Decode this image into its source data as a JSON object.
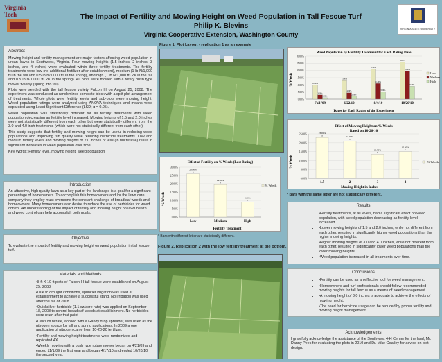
{
  "header": {
    "title": "The Impact of Fertility and Mowing Height on Weed Population in Tall Fescue Turf",
    "author": "Philip K. Blevins",
    "affiliation": "Virginia Cooperative Extension, Washington County",
    "logo_left_text": "Virginia Tech",
    "logo_right_text": "VIRGINIA STATE UNIVERSITY"
  },
  "abstract": {
    "heading": "Abstract",
    "p1": "Mowing height and fertility management are major factors affecting weed population in urban lawns in Southwest, Virginia. Four mowing heights (1.5 inches, 2 inches, 3 inches, and 4 inches) were evaluated within three fertility treatments. The fertility treatments were low (no additional fertilizer after establishment), medium (1 lb N/1,000 ft² in the fall and 0.5 lb N/1,000 ft² in the spring), and high (1 lb N/1,000 ft² 2X in the fall and 0.5 lb N/1,000 ft² 2X in the spring). All plots were mowed with a rotary push type mower weekly (spring into fall).",
    "p2": "Plots were seeded with the tall fescue variety Falcon III on August 25, 2008. The experiment was conducted as randomized complete block with a split plot arrangement of treatments. Whole plots were fertility levels and sub-plots were mowing height. Weed population ratings were analyzed using ANOVA techniques and means were separated using Least Significant Difference (LSD; α = 0.05).",
    "p3": "Weed population was statistically different for all fertility treatments with weed population decreasing as fertility level increased. Mowing heights of 1.5 and 2.0 inches were not statistically different from each other but were statistically different from the 3.0 and 4.0 inch treatments (which were not statistically different from each other).",
    "p4": "This study suggests that fertility and mowing height can be useful in reducing weed populations and improving turf quality while reducing herbicide treatments. Low and medium fertility levels and mowing heights of 2.0 inches or less (in tall fescue) result in significant increases in weed population over time.",
    "keywords": "Key Words: Fertility level, mowing height, weed population"
  },
  "introduction": {
    "heading": "Introduction",
    "text": "An attractive, high quality lawn as a key part of the landscape is a goal for a significant percentage of homeowners. To accomplish this homeowners and /or the lawn care company they employ must overcome the constant challenge of broadleaf weeds and homeowners. Many homeowners also desire to reduce the use of herbicides for weed control. An understanding of the impact of fertility and mowing height on lawn health and weed control can help accomplish both goals."
  },
  "objective": {
    "heading": "Objective",
    "text": "To evaluate the impact of fertility and mowing height on weed population in tall fescue turf."
  },
  "materials": {
    "heading": "Materials and Methods",
    "items": [
      "8 ft X 10 ft plots of Falcon III tall fescue were established on August 25, 2008",
      "Due to drought conditions, sprinkler irrigation was used at establishment to achieve a successful stand. No irrigation was used after the fall of 2008.",
      "Quicksilver herbicide (1.1 oz/acre rate) was applied on September 18, 2008 to control broadleaf weeds at establishment. No herbicides were used after that point.",
      "Calcium nitrate, applied with a Gandy drop spreader, was used as the nitrogen source for fall and spring applications. In 2009 a one application of nitrogen came from 10-20-20 fertilizer.",
      "Fertility and mowing height treatments were randomized and replicated 4X.",
      "Weekly mowing with a push type rotary mower began on 4/21/09 and ended 11/1/09 the first year and began 4/17/10 and ended 10/20/10 the second year."
    ]
  },
  "figures": {
    "fig1_caption": "Figure 1. Plot Layout - replication 1 as an example",
    "fig2_caption": "Figure 2. Replication 2 with the low fertility treatment at the bottom.",
    "bar_note": "* Bars with different letter are statistically different.",
    "bar_note2": "* Bars with the same letter are not statistically different."
  },
  "results": {
    "heading": "Results",
    "items": [
      "Fertility treatments, at all levels, had a significant effect on weed population, with weed population decreasing as fertility level increased.",
      "Lower mowing heights of 1.5 and 2.0 inches, while not different from each other, resulted in significantly higher weed populations than the higher mowing heights.",
      "Higher mowing heights of 3.0 and 4.0 inches, while not different from each other, resulted in significantly lower weed populations than the lower mowing heights.",
      "Weed population increased in all treatments over time."
    ]
  },
  "conclusions": {
    "heading": "Conclusions",
    "items": [
      "Fertility can be used as an effective tool for weed management.",
      "Homeowners and turf professionals should follow recommended mowing heights for tall fescue as a means of weed management.",
      "A mowing height of 3.0 inches is adequate to achieve the effects of mowing height.",
      "The need for herbicide usage can be reduced by proper fertility and mowing height management."
    ]
  },
  "acknowledgements": {
    "heading": "Acknowledgements",
    "text": "I gratefully acknowledge the assistance of the Southwest 4-H Center for the land, Mr. Danny Peek for evaluating the plots in 2010 and Dr. Mike Goatley for advice on plot design."
  },
  "chart_data": [
    {
      "type": "bar",
      "title": "Weed Population by Fertility Treatment for Each Rating Date",
      "xlabel": "Dates for Each Rating of the Experiment",
      "ylabel": "% Weeds",
      "categories": [
        "Fall '09",
        "6/22/10",
        "8/4/10",
        "10/26/10"
      ],
      "ylim": [
        0,
        30
      ],
      "yticks": [
        "0.00%",
        "5.00%",
        "10.00%",
        "15.00%",
        "20.00%",
        "25.00%",
        "30.00%"
      ],
      "legend": "right",
      "series": [
        {
          "name": "Low",
          "color": "#e6e6b8",
          "values": [
            10.0,
            13.0,
            21.0,
            26.0
          ],
          "labels": [
            "10.00%",
            "13.00%",
            "21.00%",
            "26.00%"
          ]
        },
        {
          "name": "Medium",
          "color": "#8b1c1c",
          "values": [
            3.0,
            4.5,
            11.0,
            19.5
          ],
          "labels": [
            "3.00%",
            "4.50%",
            "11.00%",
            "19.50%"
          ]
        },
        {
          "name": "High",
          "color": "#c8e0b0",
          "values": [
            1.0,
            2.0,
            5.0,
            9.0
          ],
          "labels": [
            "1.00%",
            "2.00%",
            "5.00%",
            "9.00%"
          ]
        }
      ]
    },
    {
      "type": "bar",
      "title": "Effect of Mowing Height on % Weeds Rated on 10-26-10",
      "xlabel": "Mowing Height in Inches",
      "ylabel": "% Weeds",
      "legend_label": "% Weeds",
      "categories": [
        "1.5",
        "2",
        "3",
        "4"
      ],
      "ylim": [
        0,
        25
      ],
      "yticks": [
        "0.00%",
        "5.00%",
        "10.00%",
        "15.00%",
        "20.00%",
        "25.00%"
      ],
      "values": [
        23.0,
        21.0,
        13.5,
        15.0
      ],
      "labels": [
        "23.00%",
        "21.00%",
        "13.50%",
        "15.00%"
      ],
      "letters": [
        "a",
        "a",
        "b",
        "b"
      ]
    },
    {
      "type": "bar",
      "title": "Effect of Fertility on % Weeds (Last Rating)",
      "xlabel": "Fertility Treatment",
      "ylabel": "% Weeds",
      "legend_label": "% Weeds",
      "categories": [
        "Low",
        "Medium",
        "High"
      ],
      "ylim": [
        0,
        30
      ],
      "yticks": [
        "0.00%",
        "5.00%",
        "10.00%",
        "15.00%",
        "20.00%",
        "25.00%",
        "30.00%"
      ],
      "values": [
        26.0,
        19.5,
        9.0
      ],
      "labels": [
        "26.00%",
        "19.50%",
        "9.00%"
      ],
      "letters": [
        "a",
        "b",
        "c"
      ]
    }
  ]
}
